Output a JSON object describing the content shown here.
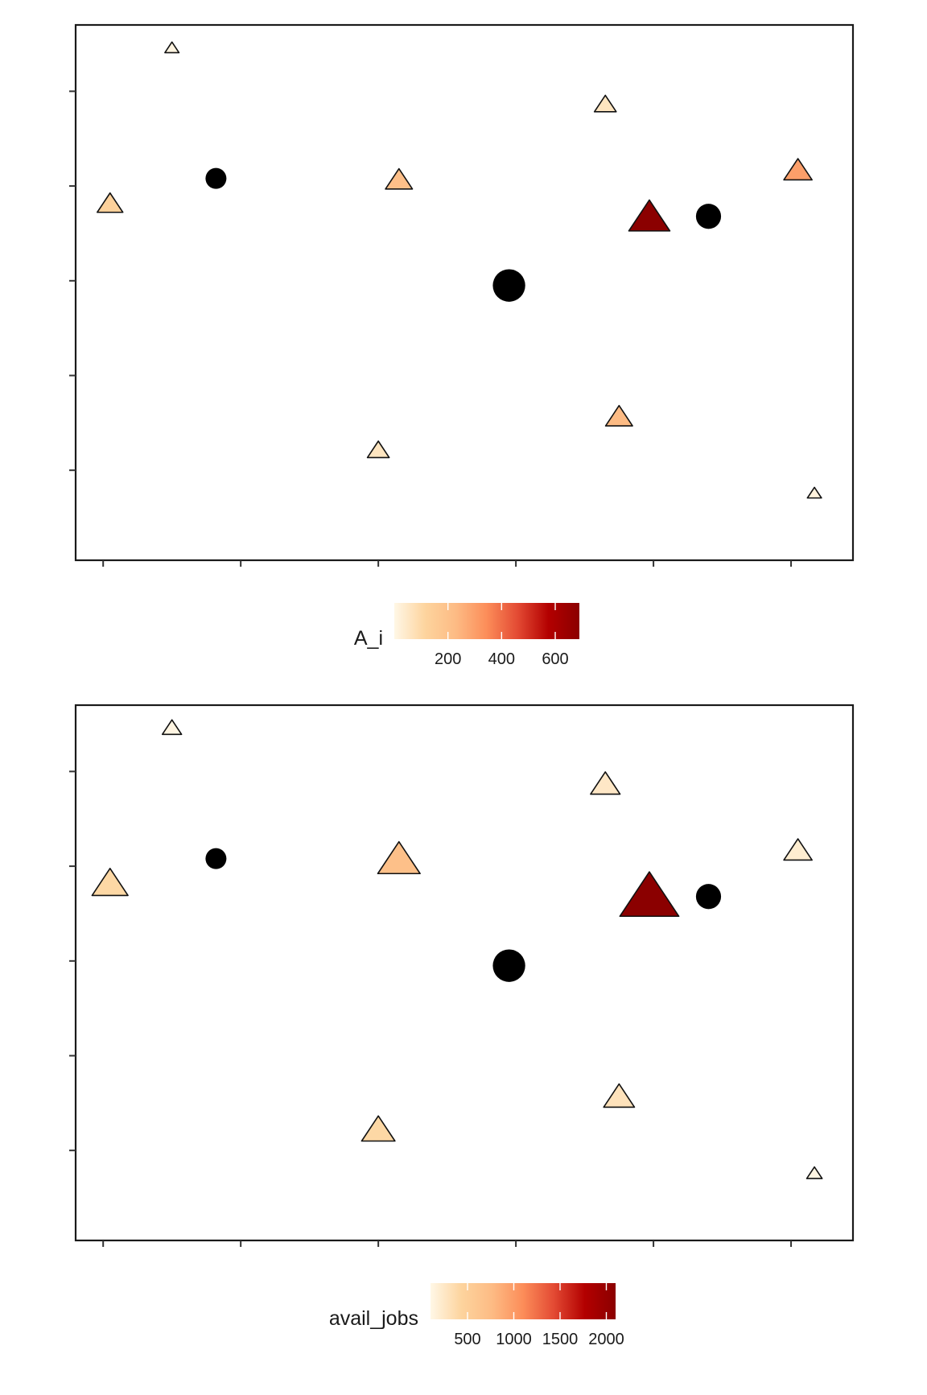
{
  "chart_data": [
    {
      "type": "scatter",
      "title": "",
      "xlabel": "",
      "ylabel": "",
      "xlim": [
        -0.2,
        5.45
      ],
      "ylim": [
        -0.95,
        4.7
      ],
      "x_ticks": [
        0,
        1,
        2,
        3,
        4,
        5
      ],
      "y_ticks": [
        0,
        1,
        2,
        3,
        4,
        5
      ],
      "grid": false,
      "legend": {
        "title": "A_i",
        "placement": "bottom",
        "range": [
          0,
          690
        ],
        "ticks": [
          200,
          400,
          600
        ],
        "colors": [
          "#fff7e6",
          "#fdd49e",
          "#fdbb84",
          "#fc8d59",
          "#e34a33",
          "#b30000",
          "#8b0000"
        ]
      },
      "series": [
        {
          "marker": "triangle",
          "points": [
            {
              "x": 0.05,
              "y": 2.8,
              "value": 130,
              "size": 1.0
            },
            {
              "x": 0.5,
              "y": 4.45,
              "value": 10,
              "size": 0.55
            },
            {
              "x": 2.0,
              "y": 0.2,
              "value": 60,
              "size": 0.85
            },
            {
              "x": 2.15,
              "y": 3.05,
              "value": 210,
              "size": 1.05
            },
            {
              "x": 3.65,
              "y": 3.85,
              "value": 60,
              "size": 0.85
            },
            {
              "x": 3.75,
              "y": 0.55,
              "value": 230,
              "size": 1.05
            },
            {
              "x": 3.97,
              "y": 2.65,
              "value": 690,
              "size": 1.6
            },
            {
              "x": 5.05,
              "y": 3.15,
              "value": 300,
              "size": 1.1
            },
            {
              "x": 5.17,
              "y": -0.25,
              "value": 15,
              "size": 0.55
            }
          ]
        },
        {
          "marker": "circle",
          "points": [
            {
              "x": 0.82,
              "y": 3.08,
              "size": 1.0
            },
            {
              "x": 2.95,
              "y": 1.95,
              "size": 1.55
            },
            {
              "x": 4.4,
              "y": 2.68,
              "size": 1.2
            }
          ]
        }
      ]
    },
    {
      "type": "scatter",
      "title": "",
      "xlabel": "",
      "ylabel": "",
      "xlim": [
        -0.2,
        5.45
      ],
      "ylim": [
        -0.95,
        4.7
      ],
      "x_ticks": [
        0,
        1,
        2,
        3,
        4,
        5
      ],
      "y_ticks": [
        0,
        1,
        2,
        3,
        4,
        5
      ],
      "grid": false,
      "legend": {
        "title": "avail_jobs",
        "placement": "bottom",
        "range": [
          100,
          2100
        ],
        "ticks": [
          500,
          1000,
          1500,
          2000
        ],
        "colors": [
          "#fff7e6",
          "#fdd49e",
          "#fdbb84",
          "#fc8d59",
          "#e34a33",
          "#b30000",
          "#8b0000"
        ]
      },
      "series": [
        {
          "marker": "triangle",
          "points": [
            {
              "x": 0.05,
              "y": 2.8,
              "value": 400,
              "size": 1.4
            },
            {
              "x": 0.5,
              "y": 4.45,
              "value": 120,
              "size": 0.75
            },
            {
              "x": 2.0,
              "y": 0.2,
              "value": 400,
              "size": 1.3
            },
            {
              "x": 2.15,
              "y": 3.05,
              "value": 700,
              "size": 1.65
            },
            {
              "x": 3.65,
              "y": 3.85,
              "value": 250,
              "size": 1.15
            },
            {
              "x": 3.75,
              "y": 0.55,
              "value": 300,
              "size": 1.2
            },
            {
              "x": 3.97,
              "y": 2.65,
              "value": 2100,
              "size": 2.3
            },
            {
              "x": 5.05,
              "y": 3.15,
              "value": 200,
              "size": 1.1
            },
            {
              "x": 5.17,
              "y": -0.25,
              "value": 120,
              "size": 0.6
            }
          ]
        },
        {
          "marker": "circle",
          "points": [
            {
              "x": 0.82,
              "y": 3.08,
              "size": 1.0
            },
            {
              "x": 2.95,
              "y": 1.95,
              "size": 1.55
            },
            {
              "x": 4.4,
              "y": 2.68,
              "size": 1.2
            }
          ]
        }
      ]
    }
  ]
}
